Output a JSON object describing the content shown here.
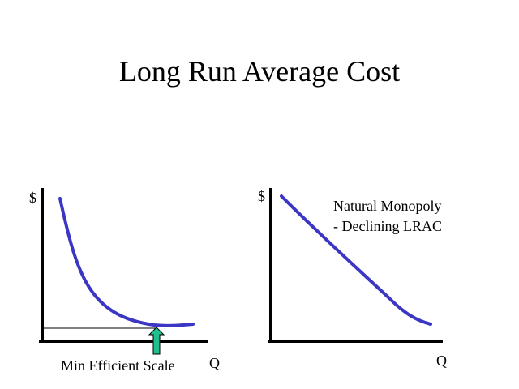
{
  "slide": {
    "title": "Long Run Average Cost"
  },
  "colors": {
    "curve": "#3b36c4",
    "axis": "#000000",
    "arrow_fill": "#1fbf8f",
    "arrow_stroke": "#000000"
  },
  "left_diagram": {
    "y_axis_label": "$",
    "x_axis_label": "Q",
    "annotation": "Min Efficient Scale",
    "arrow_icon": "up-arrow-icon"
  },
  "right_diagram": {
    "y_axis_label": "$",
    "x_axis_label": "Q",
    "annotation_line1": "Natural Monopoly",
    "annotation_line2": "- Declining LRAC"
  }
}
